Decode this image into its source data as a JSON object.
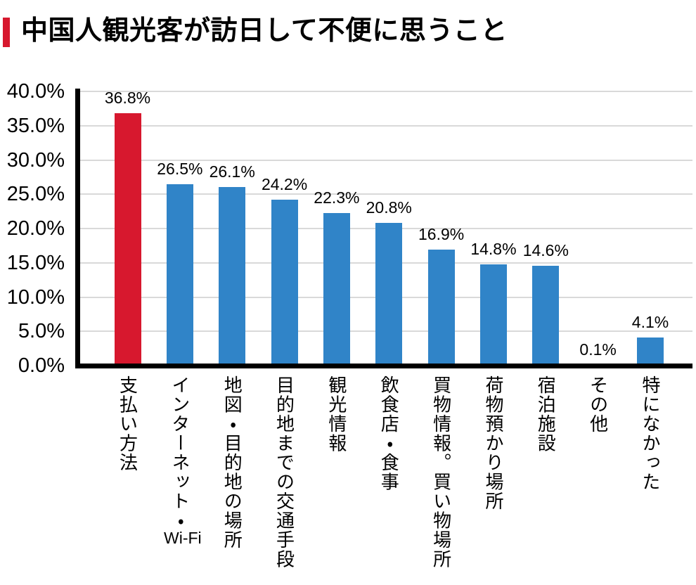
{
  "header": {
    "title": "中国人観光客が訪日して不便に思うこと",
    "accent_color": "#d7182e"
  },
  "chart_data": {
    "type": "bar",
    "title": "中国人観光客が訪日して不便に思うこと",
    "categories": [
      "支払い方法",
      "インターネット・Wi-Fi",
      "地図・目的地の場所",
      "目的地までの交通手段",
      "観光情報",
      "飲食店・食事",
      "買物情報。買い物場所",
      "荷物預かり場所",
      "宿泊施設",
      "その他",
      "特になかった"
    ],
    "values": [
      36.8,
      26.5,
      26.1,
      24.2,
      22.3,
      20.8,
      16.9,
      14.8,
      14.6,
      0.1,
      4.1
    ],
    "value_labels": [
      "36.8%",
      "26.5%",
      "26.1%",
      "24.2%",
      "22.3%",
      "20.8%",
      "16.9%",
      "14.8%",
      "14.6%",
      "0.1%",
      "4.1%"
    ],
    "highlight_index": 0,
    "colors": {
      "highlight_bar": "#d7182e",
      "default_bar": "#3084c8",
      "gridline": "#d9d9d9",
      "axis": "#000000"
    },
    "xlabel": "",
    "ylabel": "",
    "ylim": [
      0,
      40
    ],
    "ytick_step": 5,
    "ytick_labels": [
      "0.0%",
      "5.0%",
      "10.0%",
      "15.0%",
      "20.0%",
      "25.0%",
      "30.0%",
      "35.0%",
      "40.0%"
    ],
    "grid": true,
    "legend": false,
    "value_label_position": "above-bar"
  }
}
